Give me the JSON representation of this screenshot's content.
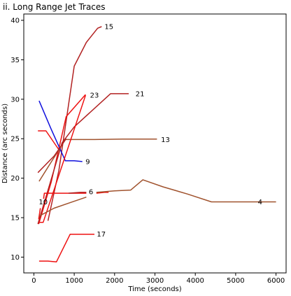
{
  "chart_data": {
    "type": "line",
    "title": "ii. Long Range Jet Traces",
    "xlabel": "Time (seconds)",
    "ylabel": "Distance (arc seconds)",
    "xlim": [
      -250,
      6250
    ],
    "ylim": [
      8,
      40.8
    ],
    "xticks": [
      0,
      1000,
      2000,
      3000,
      4000,
      5000,
      6000
    ],
    "yticks": [
      10,
      15,
      20,
      25,
      30,
      35,
      40
    ],
    "grid": false,
    "colors": {
      "red": "#ee1111",
      "brown": "#a0522d",
      "blue": "#1111dd",
      "darkred": "#b22222"
    },
    "series": [
      {
        "name": "15",
        "color": "darkred",
        "x": [
          350,
          620,
          1000,
          1300,
          1580,
          1680
        ],
        "y": [
          14.6,
          21,
          34.2,
          37.2,
          39.0,
          39.2
        ]
      },
      {
        "name": "23",
        "color": "red",
        "x": [
          120,
          430,
          800,
          1280
        ],
        "y": [
          14.2,
          19.5,
          27.8,
          30.6
        ]
      },
      {
        "name": "21",
        "color": "darkred",
        "x": [
          100,
          700,
          1000,
          1900,
          2350
        ],
        "y": [
          14.2,
          24.5,
          26.5,
          30.7,
          30.7
        ]
      },
      {
        "name": "13",
        "color": "brown",
        "x": [
          130,
          780,
          1500,
          2200,
          3050
        ],
        "y": [
          19.6,
          24.9,
          24.9,
          24.95,
          24.95
        ]
      },
      {
        "name": "9",
        "color": "blue",
        "x": [
          130,
          420,
          780,
          1000,
          1200
        ],
        "y": [
          29.8,
          26.3,
          22.2,
          22.2,
          22.1
        ]
      },
      {
        "name": "",
        "color": "red",
        "x": [
          100,
          300,
          620
        ],
        "y": [
          26.0,
          26.0,
          23.6
        ]
      },
      {
        "name": "",
        "color": "darkred",
        "x": [
          100,
          500,
          800
        ],
        "y": [
          20.7,
          22.8,
          25.0
        ]
      },
      {
        "name": "",
        "color": "red",
        "x": [
          120,
          230,
          1280
        ],
        "y": [
          14.4,
          14.4,
          30.5
        ]
      },
      {
        "name": "6",
        "color": "red",
        "x": [
          240,
          260,
          900,
          1300
        ],
        "y": [
          17.4,
          18.1,
          18.1,
          18.1
        ]
      },
      {
        "name": "",
        "color": "darkred",
        "x": [
          860,
          1150,
          1300
        ],
        "y": [
          18.1,
          18.2,
          18.2
        ]
      },
      {
        "name": "",
        "color": "red",
        "x": [
          1550,
          1750,
          1850
        ],
        "y": [
          18.1,
          18.2,
          18.2
        ]
      },
      {
        "name": "4",
        "color": "brown",
        "x": [
          1550,
          2000,
          2400,
          2700,
          3200,
          3800,
          4400,
          5000,
          5450,
          5700,
          6000
        ],
        "y": [
          18.2,
          18.4,
          18.5,
          19.8,
          18.9,
          18.0,
          17.0,
          17.0,
          17.0,
          17.0,
          17.0
        ]
      },
      {
        "name": "10",
        "color": "red",
        "x": [
          120,
          160
        ],
        "y": [
          14.8,
          16.2
        ]
      },
      {
        "name": "",
        "color": "brown",
        "x": [
          130,
          500,
          900,
          1300
        ],
        "y": [
          15.2,
          16.2,
          16.9,
          17.6
        ]
      },
      {
        "name": "17",
        "color": "red",
        "x": [
          130,
          350,
          560,
          900,
          1100,
          1500
        ],
        "y": [
          9.5,
          9.5,
          9.4,
          12.9,
          12.9,
          12.9
        ]
      }
    ],
    "annotations": [
      {
        "text": "15",
        "x": 1750,
        "y": 39.2
      },
      {
        "text": "23",
        "x": 1390,
        "y": 30.5
      },
      {
        "text": "21",
        "x": 2520,
        "y": 30.7
      },
      {
        "text": "13",
        "x": 3150,
        "y": 24.9
      },
      {
        "text": "9",
        "x": 1280,
        "y": 22.1
      },
      {
        "text": "6",
        "x": 1360,
        "y": 18.3
      },
      {
        "text": "4",
        "x": 5550,
        "y": 17.0
      },
      {
        "text": "10",
        "x": 120,
        "y": 17.0
      },
      {
        "text": "17",
        "x": 1560,
        "y": 12.9
      }
    ]
  }
}
